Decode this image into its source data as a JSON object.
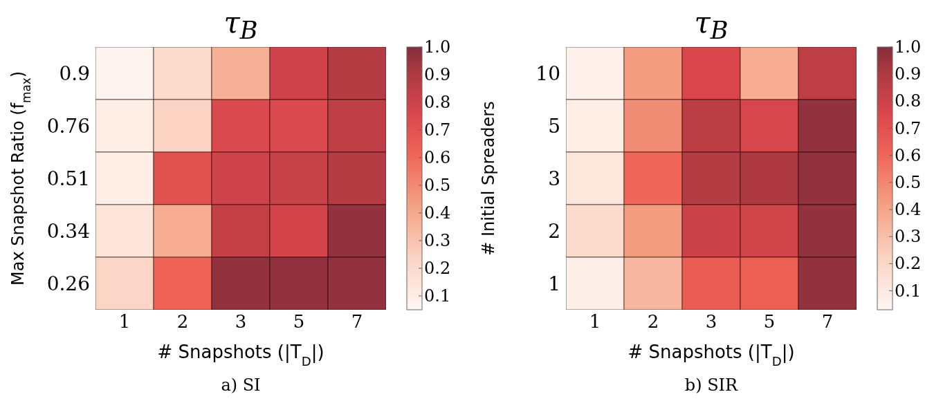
{
  "chart_data": [
    {
      "type": "heatmap",
      "title": "τ$_{B}$",
      "xlabel": "# Snapshots (|T$_{D}$|)",
      "ylabel": "Max Snapshot Ratio (f$_{max}$)",
      "annotations": [
        "a) SI"
      ],
      "categories": [
        "1",
        "2",
        "3",
        "5",
        "7"
      ],
      "y_categories": [
        "0.9",
        "0.76",
        "0.51",
        "0.34",
        "0.26"
      ],
      "cells": [
        [
          0.06,
          0.2,
          0.37,
          0.8,
          0.88
        ],
        [
          0.1,
          0.24,
          0.75,
          0.75,
          0.85
        ],
        [
          0.1,
          0.7,
          0.8,
          0.82,
          0.88
        ],
        [
          0.15,
          0.38,
          0.83,
          0.78,
          0.97
        ],
        [
          0.23,
          0.62,
          0.97,
          0.97,
          0.97
        ]
      ],
      "clim": [
        0.05,
        1.0
      ],
      "cticks": [
        0.1,
        0.2,
        0.3,
        0.4,
        0.5,
        0.6,
        0.7,
        0.8,
        0.9,
        {
          "value": 1.0,
          "label": "1.0"
        }
      ]
    },
    {
      "type": "heatmap",
      "title": "τ$_{B}$",
      "xlabel": "# Snapshots (|T$_{D}$|)",
      "ylabel": "# Initial Spreaders",
      "annotations": [
        "b) SIR"
      ],
      "categories": [
        "1",
        "2",
        "3",
        "5",
        "7"
      ],
      "y_categories": [
        "10",
        "5",
        "3",
        "2",
        "1"
      ],
      "cells": [
        [
          0.06,
          0.43,
          0.75,
          0.37,
          0.85
        ],
        [
          0.08,
          0.48,
          0.86,
          0.76,
          0.97
        ],
        [
          0.12,
          0.6,
          0.88,
          0.9,
          0.97
        ],
        [
          0.18,
          0.43,
          0.8,
          0.78,
          0.97
        ],
        [
          0.07,
          0.33,
          0.64,
          0.62,
          0.97
        ]
      ],
      "clim": [
        0.03,
        1.0
      ],
      "cticks": [
        0.1,
        0.2,
        0.3,
        0.4,
        0.5,
        0.6,
        0.7,
        0.8,
        0.9,
        {
          "value": 1.0,
          "label": "1.0"
        }
      ]
    }
  ]
}
